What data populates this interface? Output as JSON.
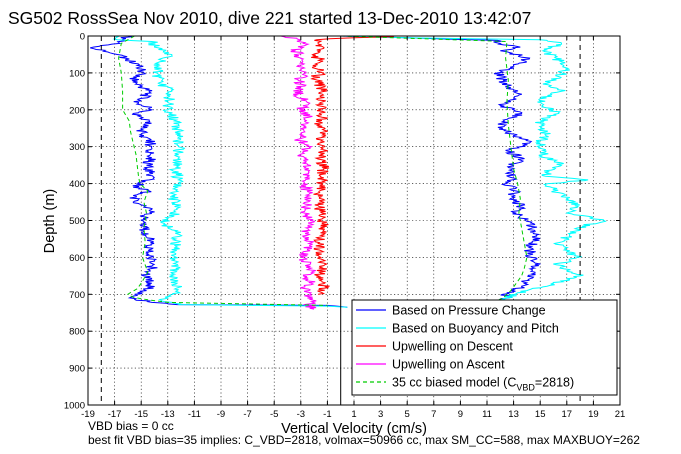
{
  "chart_data": {
    "type": "line",
    "title": "SG502 RossSea Nov 2010, dive 221 started 13-Dec-2010 13:42:07",
    "xlabel": "Vertical Velocity (cm/s)",
    "ylabel": "Depth (m)",
    "xlim": [
      -19,
      21
    ],
    "ylim": [
      1000,
      0
    ],
    "y_reversed": true,
    "grid": true,
    "x_ticks": [
      -19,
      -17,
      -15,
      -13,
      -11,
      -9,
      -7,
      -5,
      -3,
      -1,
      1,
      3,
      5,
      7,
      9,
      11,
      13,
      15,
      17,
      19,
      21
    ],
    "y_ticks": [
      0,
      100,
      200,
      300,
      400,
      500,
      600,
      700,
      800,
      900,
      1000
    ],
    "legend_position": "bottom-right",
    "vertical_lines": [
      {
        "x": -18,
        "style": "dashed"
      },
      {
        "x": 0,
        "style": "solid"
      },
      {
        "x": 18,
        "style": "dashed"
      }
    ],
    "series": [
      {
        "name": "Based on Pressure Change",
        "color": "#0000ff",
        "style": "solid",
        "segments": [
          {
            "x": [
              -16,
              -16.6,
              -18.6,
              -16.8,
              -16.2,
              -15.3,
              -14.8,
              -15.7,
              -14.4,
              -15.2,
              -14.2,
              -15.6,
              -14.4,
              -15,
              -14.8,
              -14.2,
              -14.6,
              -14.2,
              -14.6,
              -14.4,
              -14.4,
              -15.6,
              -14.4,
              -15.3,
              -15.6,
              -14.6,
              -14.2,
              -14.8,
              -14.6,
              -14.8,
              -14.3,
              -14.6,
              -14,
              -14.2,
              -14.8,
              -14.2,
              -14.6,
              -15.5,
              -15.6,
              -15.4,
              -14.5,
              -14.2,
              -12.3,
              -1,
              0.5
            ],
            "y": [
              0,
              20,
              30,
              50,
              60,
              80,
              100,
              120,
              150,
              180,
              200,
              210,
              230,
              250,
              270,
              290,
              310,
              330,
              350,
              370,
              390,
              410,
              420,
              430,
              450,
              460,
              470,
              490,
              510,
              530,
              560,
              590,
              610,
              630,
              650,
              670,
              690,
              700,
              705,
              712,
              720,
              722,
              728,
              730,
              735
            ]
          },
          {
            "x": [
              0,
              5,
              11.8,
              12,
              13.5,
              12,
              14.2,
              13,
              11.8,
              12.2,
              12.8,
              13.4,
              12.4,
              12.3,
              13.6,
              12.3,
              12.2,
              13,
              14.2,
              12.4,
              13.6,
              13,
              12.6,
              12.9,
              12.4,
              13.2,
              12.8,
              13.5,
              13.2,
              13.9,
              14.4,
              14.7,
              14.4,
              14.2,
              14.4,
              14.6,
              14.6,
              14.1,
              13.6,
              12.8,
              12.2,
              12.6,
              11.5
            ],
            "y": [
              0,
              5,
              12,
              20,
              30,
              40,
              60,
              80,
              100,
              120,
              140,
              160,
              180,
              190,
              210,
              230,
              250,
              270,
              290,
              310,
              330,
              350,
              370,
              390,
              400,
              420,
              440,
              460,
              480,
              500,
              520,
              540,
              560,
              580,
              600,
              620,
              640,
              660,
              680,
              690,
              700,
              710,
              720
            ]
          }
        ]
      },
      {
        "name": "Based on Buoyancy and Pitch",
        "color": "#00ffff",
        "style": "solid",
        "segments": [
          {
            "x": [
              -17,
              -16.8,
              -14.2,
              -14,
              -12.7,
              -13.6,
              -13.8,
              -13.6,
              -12.7,
              -13,
              -13,
              -12.8,
              -12.5,
              -12.3,
              -12.3,
              -12.2,
              -12.2,
              -12.4,
              -12.2,
              -12.3,
              -12.4,
              -12.6,
              -12.3,
              -12.3,
              -12.3,
              -12.7,
              -13.3,
              -12.4,
              -12.4,
              -12.4,
              -12.4,
              -12.4,
              -12.4,
              -12.6,
              -12.3,
              -12.3,
              -12.6,
              -12.8,
              -13,
              -13.2,
              -13.6,
              -13.5,
              -13.5,
              -13.2,
              -12.2,
              -1,
              0.5
            ],
            "y": [
              0,
              10,
              15,
              30,
              50,
              70,
              100,
              130,
              150,
              180,
              200,
              210,
              230,
              250,
              270,
              300,
              330,
              360,
              390,
              410,
              430,
              440,
              450,
              460,
              470,
              490,
              510,
              530,
              550,
              570,
              590,
              610,
              630,
              650,
              670,
              690,
              700,
              705,
              710,
              712,
              714,
              716,
              718,
              720,
              728,
              732,
              735
            ]
          },
          {
            "x": [
              0,
              5,
              15,
              16.6,
              15.2,
              16.2,
              16.6,
              16.9,
              16.4,
              15.2,
              16.6,
              15,
              15.2,
              16.4,
              15,
              15.4,
              15,
              15.2,
              15.4,
              16.6,
              15.4,
              15.4,
              18.6,
              15.6,
              16,
              17,
              17.6,
              17,
              19.8,
              17.8,
              17.2,
              16.4,
              16.8,
              17.8,
              16.2,
              17.4,
              18,
              17.2,
              16,
              15.2,
              14,
              13.2,
              12.5,
              11.5,
              11
            ],
            "y": [
              0,
              5,
              10,
              20,
              40,
              60,
              70,
              90,
              110,
              130,
              150,
              170,
              190,
              210,
              230,
              260,
              290,
              310,
              330,
              350,
              370,
              380,
              390,
              400,
              420,
              440,
              460,
              480,
              500,
              520,
              540,
              560,
              580,
              600,
              620,
              640,
              650,
              660,
              670,
              680,
              690,
              700,
              710,
              720,
              730
            ]
          }
        ]
      },
      {
        "name": "Upwelling on Descent",
        "color": "#ff0000",
        "style": "solid",
        "segments": [
          {
            "x": [
              4,
              1,
              -1.8,
              -1.7,
              -1.3,
              -1.5,
              -2.1,
              -1.7,
              -1.5,
              -2.1,
              -1.7,
              -1.3,
              -2,
              -1.7,
              -1.5,
              -1.3,
              -1.5,
              -1.5,
              -1.4,
              -1.6,
              -1.2,
              -1.8,
              -1.2,
              -1.5,
              -1.4,
              -1.3,
              -1.5,
              -1.4,
              -1.6,
              -1.6,
              -1.7,
              -1.4,
              -1.5,
              -1.2,
              -1.5,
              -1.6,
              -1.6,
              -1.5,
              -1.2,
              -1.6,
              -1.4,
              -1.2,
              -1.7
            ],
            "y": [
              2,
              5,
              10,
              20,
              30,
              40,
              50,
              60,
              70,
              80,
              90,
              100,
              110,
              120,
              140,
              160,
              180,
              200,
              220,
              240,
              260,
              280,
              300,
              320,
              340,
              360,
              380,
              400,
              420,
              440,
              460,
              480,
              500,
              520,
              540,
              560,
              580,
              600,
              620,
              640,
              660,
              680,
              700
            ]
          }
        ]
      },
      {
        "name": "Upwelling on Ascent",
        "color": "#ff00ff",
        "style": "solid",
        "segments": [
          {
            "x": [
              -4.5,
              -3.1,
              -2.8,
              -3.4,
              -3,
              -3.2,
              -2.6,
              -3.2,
              -3,
              -3.3,
              -2.5,
              -3.1,
              -2.4,
              -3,
              -2.7,
              -3.2,
              -2.2,
              -3,
              -2.6,
              -2.4,
              -2.5,
              -2.8,
              -2.5,
              -2.2,
              -2.5,
              -2.7,
              -2.3,
              -2.6,
              -2.5,
              -2.2,
              -2.5,
              -2.9,
              -2.4,
              -2.2,
              -2.8,
              -2.5,
              -2.2,
              -2.7,
              -2.4,
              -2.3,
              -2.5,
              -2.2,
              -2.4,
              -2
            ],
            "y": [
              0,
              10,
              20,
              40,
              60,
              80,
              100,
              120,
              140,
              160,
              180,
              200,
              220,
              240,
              260,
              280,
              300,
              320,
              340,
              360,
              380,
              400,
              420,
              440,
              460,
              480,
              500,
              520,
              540,
              560,
              580,
              600,
              620,
              640,
              650,
              660,
              670,
              680,
              690,
              700,
              710,
              720,
              730,
              740
            ]
          }
        ]
      },
      {
        "name": "35 cc biased model (C_VBD=2818)",
        "label_prefix": "35 cc biased model (C",
        "label_sub": "VBD",
        "label_suffix": "=2818)",
        "color": "#00cc00",
        "style": "dashed",
        "segments": [
          {
            "x": [
              -15.5,
              -16.5,
              -16.7,
              -16.5,
              -16.4,
              -16.4,
              -15.9,
              -15.8,
              -15.6,
              -15.4,
              -15.3,
              -15.2,
              -15.1,
              -14.5,
              -14.8,
              -14.6,
              -14.8,
              -14.7,
              -14.9,
              -14.5,
              -15,
              -15.3,
              -15.8,
              -16,
              -15.6,
              -14.5,
              -13,
              -1
            ],
            "y": [
              0,
              20,
              60,
              100,
              150,
              200,
              230,
              260,
              290,
              320,
              350,
              380,
              400,
              420,
              450,
              480,
              520,
              560,
              600,
              640,
              670,
              685,
              695,
              700,
              708,
              715,
              722,
              730
            ]
          },
          {
            "x": [
              0,
              12.5,
              12.4,
              12.6,
              12.5,
              12.6,
              12.8,
              13,
              13.3,
              13.5,
              13.4,
              13.6,
              13.8,
              14,
              13.8,
              13.6,
              13.2,
              12.8,
              12.2,
              11.6
            ],
            "y": [
              0,
              15,
              60,
              120,
              180,
              240,
              300,
              360,
              400,
              440,
              480,
              520,
              560,
              600,
              630,
              650,
              670,
              690,
              710,
              720
            ]
          }
        ]
      }
    ]
  },
  "footer": {
    "line1": "VBD bias = 0 cc",
    "line2": "best fit VBD bias=35 implies: C_VBD=2818, volmax=50966 cc, max SM_CC=588, max MAXBUOY=262"
  }
}
